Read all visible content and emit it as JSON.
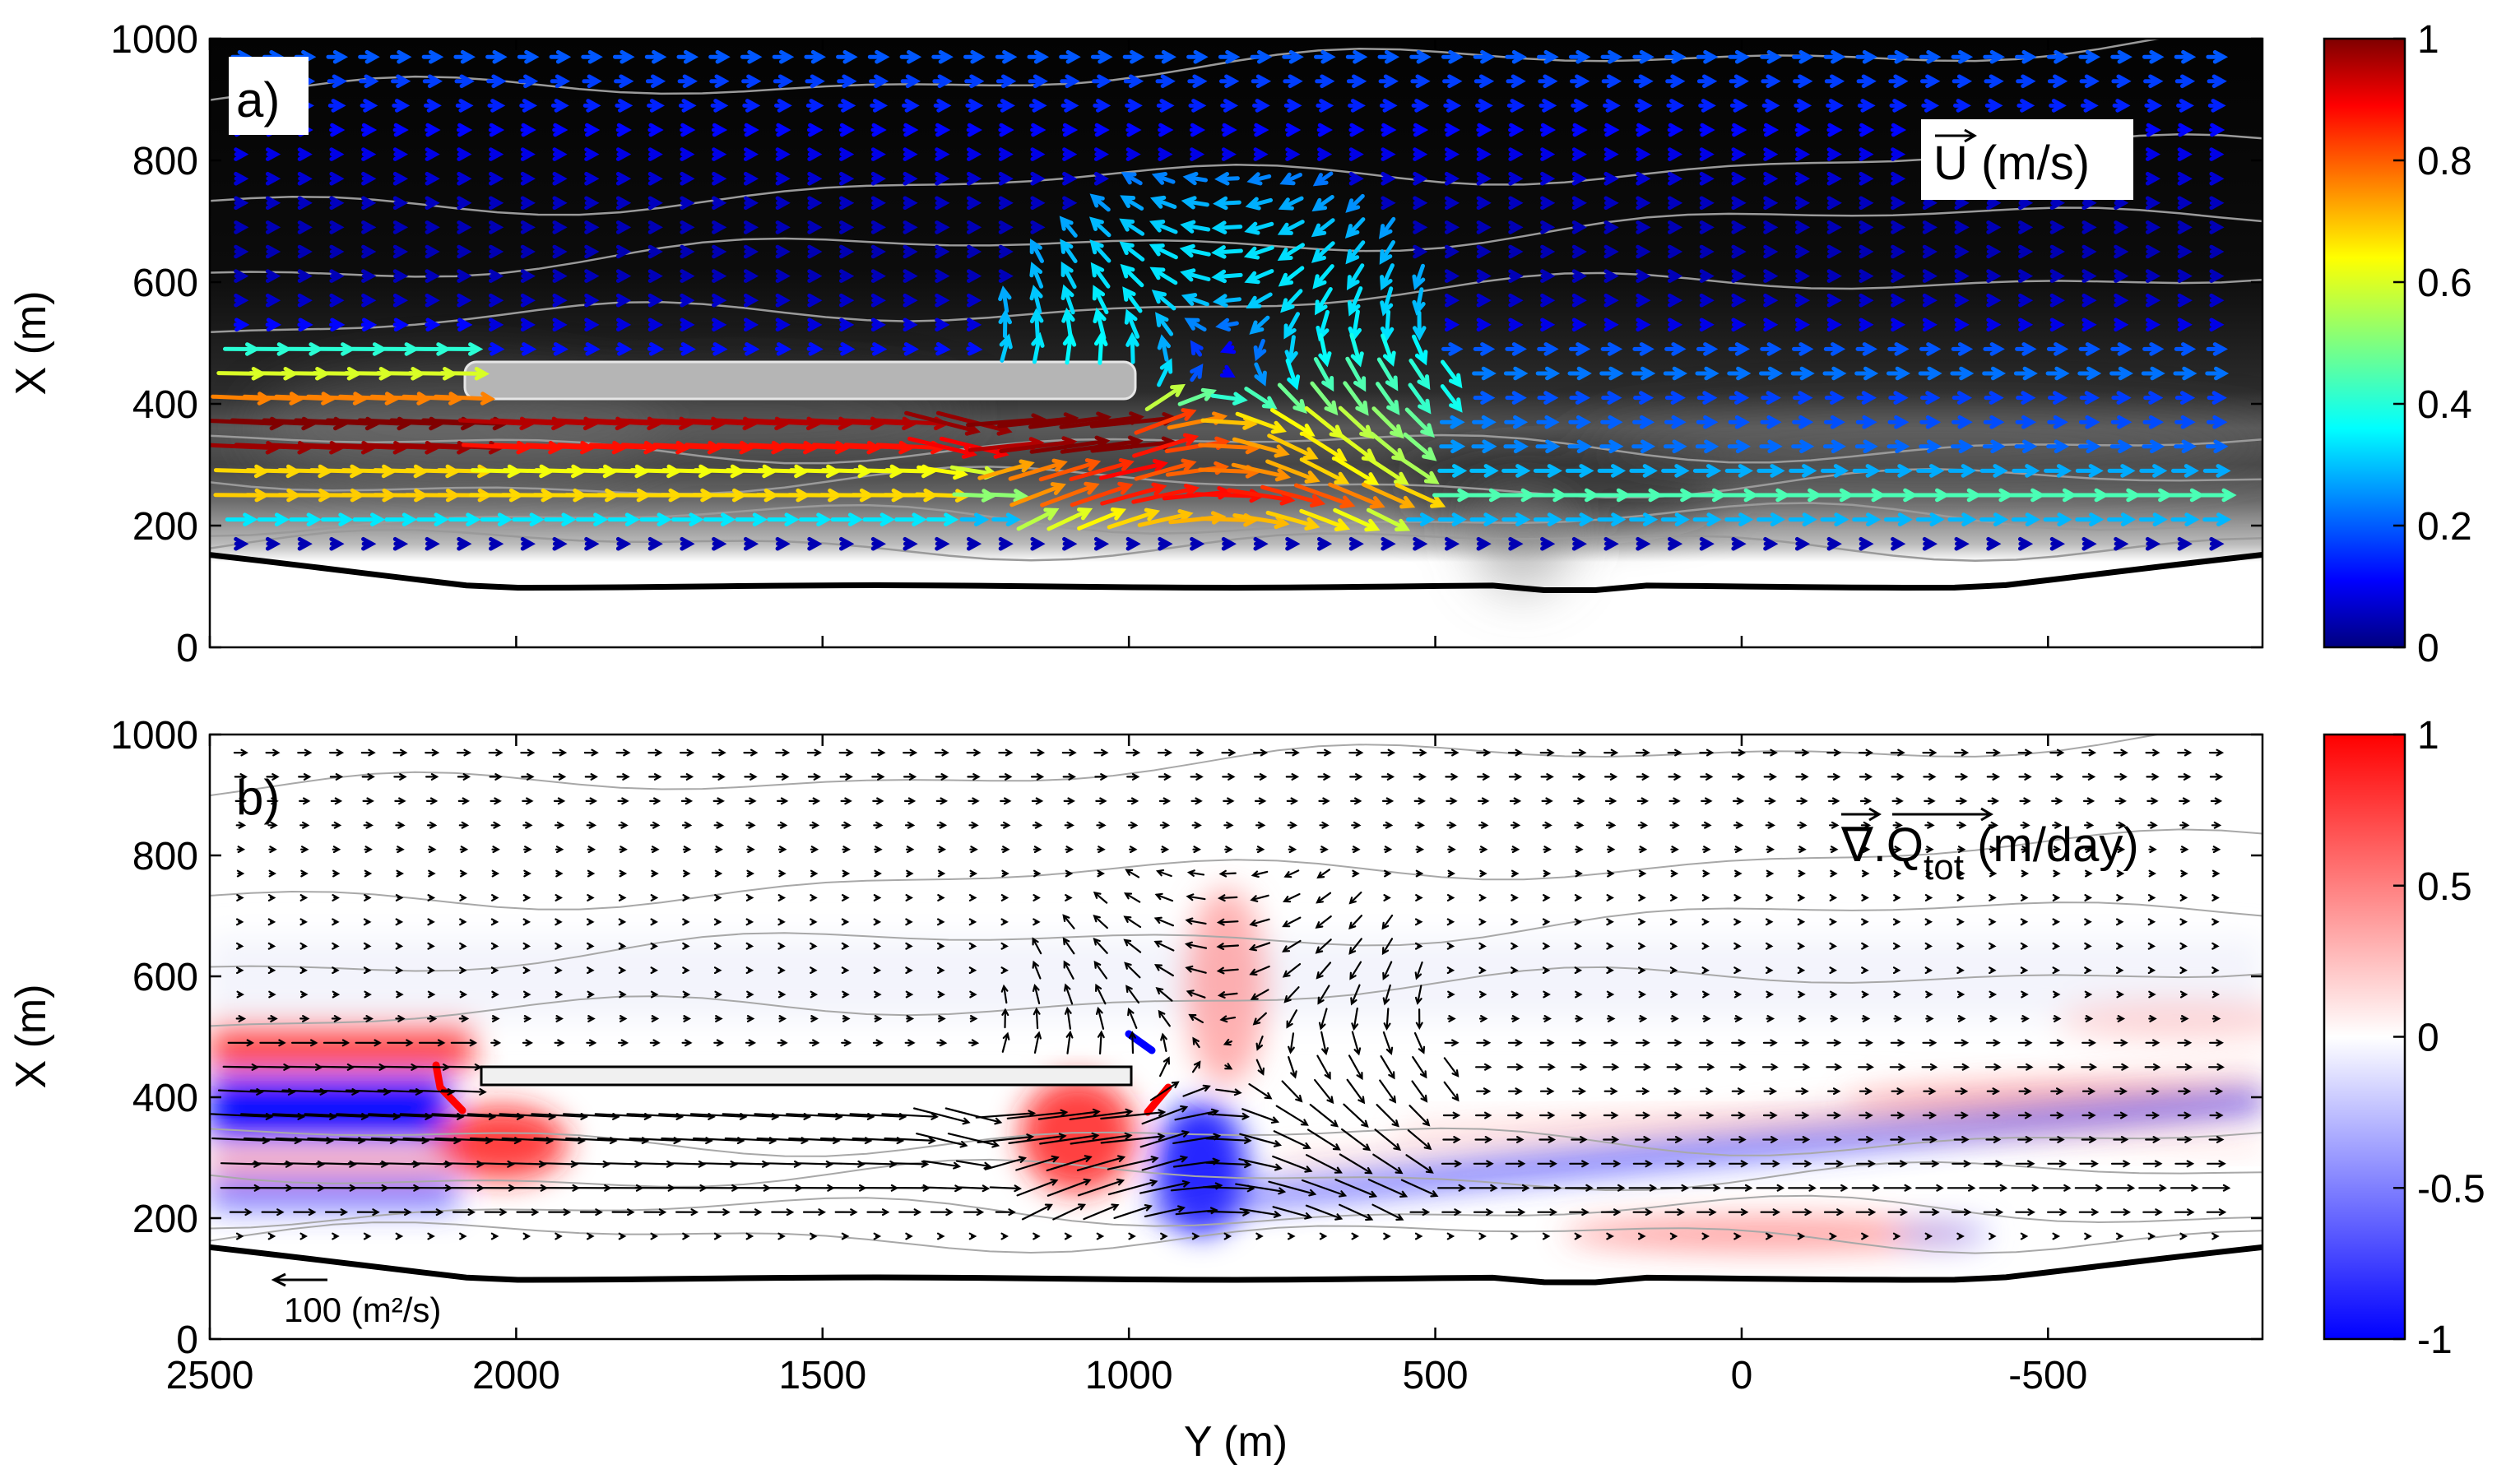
{
  "chart_data": [
    {
      "panel": "a)",
      "type": "heatmap",
      "field": "U",
      "quantity_label": "U (m/s)",
      "ylabel": "X (m)",
      "ylim": [
        0,
        1000
      ],
      "xlim": [
        2500,
        -850
      ],
      "yticks": [
        "1000",
        "800",
        "600",
        "400",
        "200",
        "0"
      ],
      "xticks": [
        "2500",
        "2000",
        "1500",
        "1000",
        "500",
        "0",
        "-500"
      ],
      "colorbar": {
        "ticks": [
          "1",
          "0.8",
          "0.6",
          "0.4",
          "0.2",
          "0"
        ],
        "range": [
          0,
          1
        ],
        "colormap": "jet"
      },
      "background": "grayscale bathymetry (dark offshore, light nearshore)",
      "shoreline_x": 100,
      "structure": {
        "y_range": [
          2050,
          950
        ],
        "x_center": 430
      },
      "eddy": {
        "y": 850,
        "x": 430,
        "radius": 200,
        "vmax": 0.4
      },
      "vector_field": "velocity arrows colored by speed"
    },
    {
      "panel": "b)",
      "type": "heatmap",
      "field": "div Q_tot",
      "quantity_label_base": "∇.Q",
      "quantity_label_sub": "tot",
      "quantity_label_unit": " (m/day)",
      "xlabel": "Y (m)",
      "ylabel": "X (m)",
      "ylim": [
        0,
        1000
      ],
      "xlim": [
        2500,
        -850
      ],
      "yticks": [
        "1000",
        "800",
        "600",
        "400",
        "200",
        "0"
      ],
      "xticks": [
        "2500",
        "2000",
        "1500",
        "1000",
        "500",
        "0",
        "-500"
      ],
      "colorbar": {
        "ticks": [
          "1",
          "0.5",
          "0",
          "-0.5",
          "-1"
        ],
        "range": [
          -1,
          1
        ],
        "colormap": "bwr"
      },
      "reference_arrow": "100 (m²/s)",
      "shoreline_x": 100,
      "structure": {
        "y_range": [
          2050,
          950
        ],
        "x_center": 430
      },
      "vector_field": "sediment flux arrows (black)"
    }
  ],
  "colors": {
    "background_dark": "#050505",
    "shoreline": "#000000",
    "positive": "#ff0000",
    "negative": "#0000ff",
    "neutral": "#ffffff"
  }
}
